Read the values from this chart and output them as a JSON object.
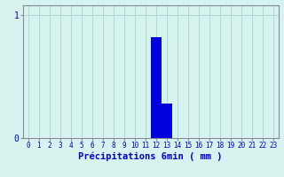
{
  "hours": [
    0,
    1,
    2,
    3,
    4,
    5,
    6,
    7,
    8,
    9,
    10,
    11,
    12,
    13,
    14,
    15,
    16,
    17,
    18,
    19,
    20,
    21,
    22,
    23
  ],
  "values": [
    0,
    0,
    0,
    0,
    0,
    0,
    0,
    0,
    0,
    0,
    0,
    0,
    0.82,
    0.28,
    0,
    0,
    0,
    0,
    0,
    0,
    0,
    0,
    0,
    0
  ],
  "bar_color": "#0000dd",
  "background_color": "#d6f3ef",
  "grid_color": "#b0d8d4",
  "axis_color": "#888899",
  "xlabel": "Précipitations 6min ( mm )",
  "xlabel_color": "#0000cc",
  "xlabel_fontsize": 7.5,
  "tick_color": "#0000bb",
  "tick_fontsize": 5.5,
  "ytick_labels": [
    "0",
    "1"
  ],
  "ytick_values": [
    0,
    1
  ],
  "ylim": [
    0,
    1.08
  ],
  "xlim": [
    -0.5,
    23.5
  ]
}
